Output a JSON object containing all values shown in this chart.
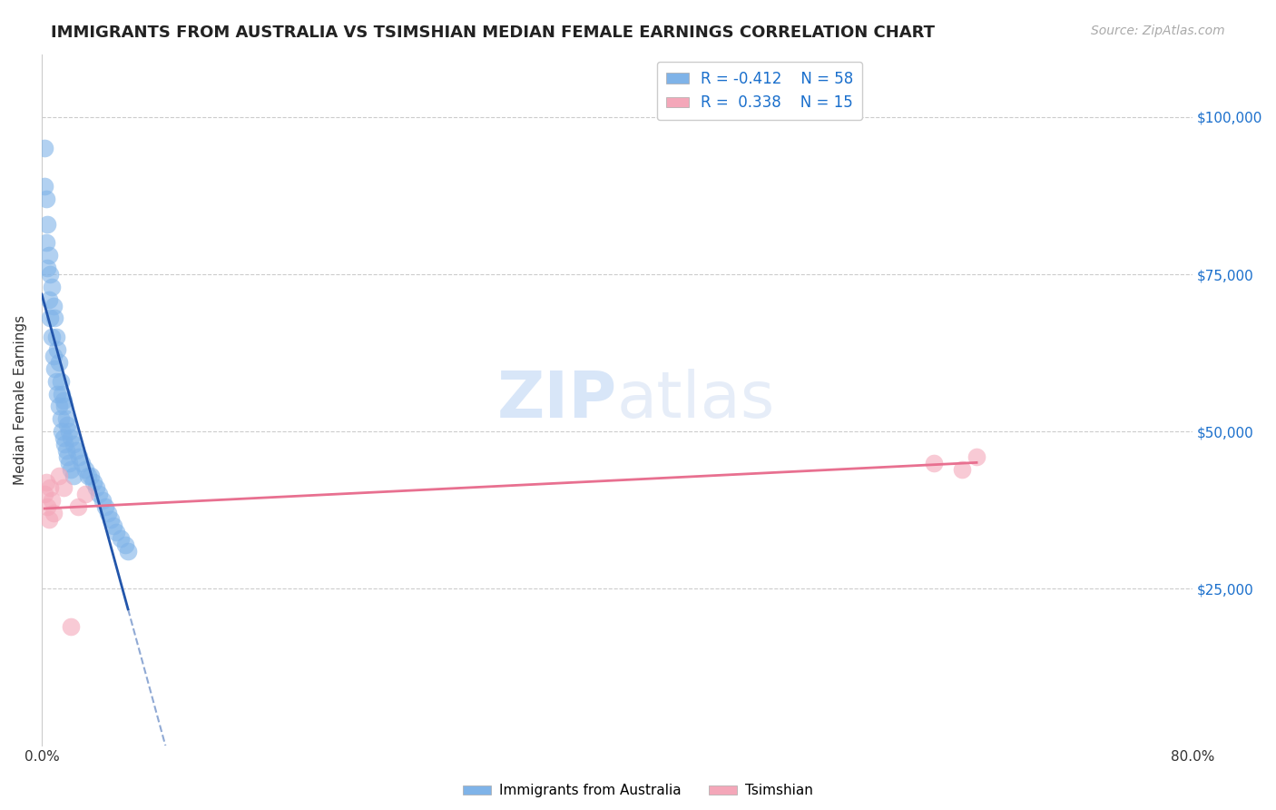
{
  "title": "IMMIGRANTS FROM AUSTRALIA VS TSIMSHIAN MEDIAN FEMALE EARNINGS CORRELATION CHART",
  "source": "Source: ZipAtlas.com",
  "ylabel": "Median Female Earnings",
  "yticks": [
    25000,
    50000,
    75000,
    100000
  ],
  "ytick_labels": [
    "$25,000",
    "$50,000",
    "$75,000",
    "$100,000"
  ],
  "watermark_zip": "ZIP",
  "watermark_atlas": "atlas",
  "blue_color": "#7fb3e8",
  "pink_color": "#f4a7b9",
  "blue_line_color": "#2255aa",
  "pink_line_color": "#e87090",
  "australia_x": [
    0.002,
    0.003,
    0.004,
    0.005,
    0.006,
    0.007,
    0.008,
    0.009,
    0.01,
    0.011,
    0.012,
    0.013,
    0.014,
    0.015,
    0.016,
    0.017,
    0.018,
    0.019,
    0.02,
    0.022,
    0.024,
    0.026,
    0.028,
    0.03,
    0.032,
    0.034,
    0.036,
    0.038,
    0.04,
    0.042,
    0.044,
    0.046,
    0.048,
    0.05,
    0.052,
    0.055,
    0.058,
    0.06,
    0.002,
    0.003,
    0.004,
    0.005,
    0.006,
    0.007,
    0.008,
    0.009,
    0.01,
    0.011,
    0.012,
    0.013,
    0.014,
    0.015,
    0.016,
    0.017,
    0.018,
    0.019,
    0.02,
    0.022
  ],
  "australia_y": [
    95000,
    87000,
    83000,
    78000,
    75000,
    73000,
    70000,
    68000,
    65000,
    63000,
    61000,
    58000,
    56000,
    55000,
    54000,
    52000,
    51000,
    50000,
    49000,
    48000,
    47000,
    46000,
    45000,
    44000,
    43000,
    43000,
    42000,
    41000,
    40000,
    39000,
    38000,
    37000,
    36000,
    35000,
    34000,
    33000,
    32000,
    31000,
    89000,
    80000,
    76000,
    71000,
    68000,
    65000,
    62000,
    60000,
    58000,
    56000,
    54000,
    52000,
    50000,
    49000,
    48000,
    47000,
    46000,
    45000,
    44000,
    43000
  ],
  "tsimshian_x": [
    0.002,
    0.003,
    0.004,
    0.005,
    0.006,
    0.007,
    0.008,
    0.012,
    0.015,
    0.02,
    0.025,
    0.03,
    0.62,
    0.64,
    0.65
  ],
  "tsimshian_y": [
    40000,
    42000,
    38000,
    36000,
    41000,
    39000,
    37000,
    43000,
    41000,
    19000,
    38000,
    40000,
    45000,
    44000,
    46000
  ],
  "xlim": [
    0.0,
    0.8
  ],
  "ylim": [
    0,
    110000
  ],
  "bg_color": "#ffffff",
  "grid_color": "#cccccc"
}
